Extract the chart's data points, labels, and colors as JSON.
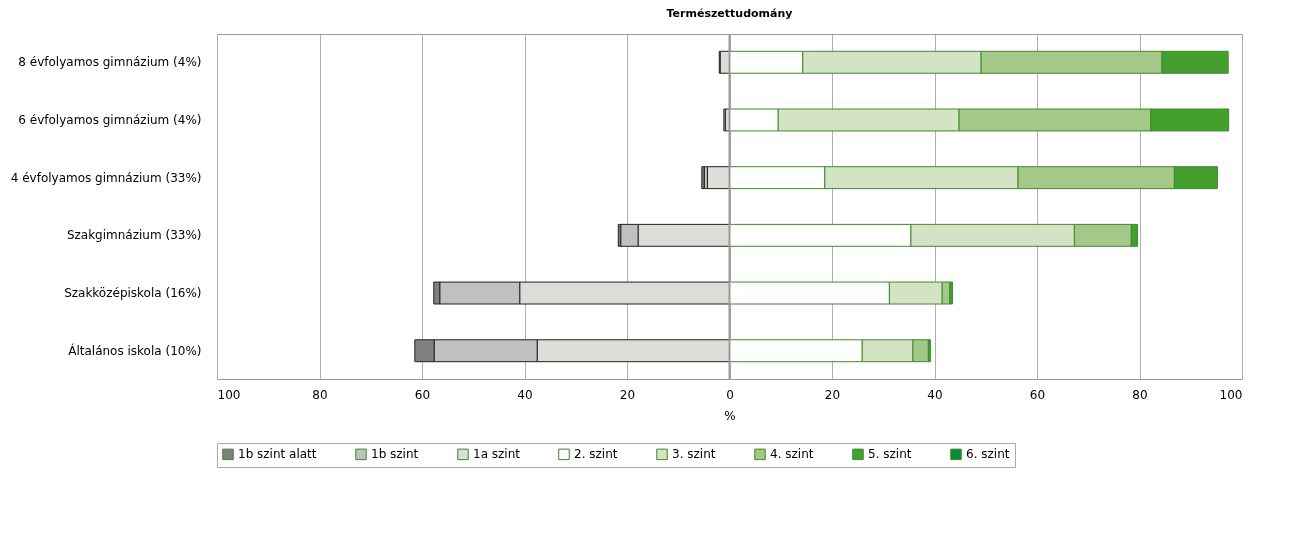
{
  "chart_data": {
    "type": "bar",
    "orientation": "horizontal",
    "stacked": true,
    "title": "Természettudomány",
    "xlabel": "%",
    "categories": [
      "8 évfolyamos gimnázium (4%)",
      "6 évfolyamos gimnázium (4%)",
      "4 évfolyamos gimnázium (33%)",
      "Szakgimnázium (33%)",
      "Szakközépiskola (16%)",
      "Általános iskola (10%)"
    ],
    "series": [
      {
        "name": "1b szint alatt",
        "color": "#808080",
        "values": [
          null,
          null,
          -0.5,
          -0.5,
          -1.2,
          -3.8
        ]
      },
      {
        "name": "1b szint",
        "color": "#c0c0c0",
        "values": [
          -0.2,
          -0.3,
          -0.6,
          -3.4,
          -15.6,
          -20.1
        ]
      },
      {
        "name": "1a szint",
        "color": "#dcdcd8",
        "values": [
          -1.8,
          -0.8,
          -4.3,
          -17.8,
          -40.9,
          -37.5
        ]
      },
      {
        "name": "2. szint",
        "color": "#ffffff",
        "values": [
          14.3,
          9.5,
          18.6,
          35.4,
          31.2,
          25.9
        ]
      },
      {
        "name": "3. szint",
        "color": "#d4e3c4",
        "values": [
          34.8,
          35.3,
          37.7,
          31.9,
          10.3,
          9.9
        ]
      },
      {
        "name": "4. szint",
        "color": "#a3c887",
        "values": [
          35.3,
          37.4,
          30.5,
          11.1,
          1.5,
          3.0
        ]
      },
      {
        "name": "5. szint",
        "color": "#43a02e",
        "values": [
          12.9,
          15.2,
          8.4,
          1.2,
          0.5,
          0.4
        ]
      },
      {
        "name": "6. szint",
        "color": "#0a8a3a",
        "values": [
          null,
          null,
          null,
          null,
          null,
          null
        ]
      }
    ],
    "xlim": [
      -100,
      100
    ],
    "xticks": [
      {
        "value": -100,
        "label": "100"
      },
      {
        "value": -80,
        "label": "80"
      },
      {
        "value": -60,
        "label": "60"
      },
      {
        "value": -40,
        "label": "40"
      },
      {
        "value": -20,
        "label": "20"
      },
      0,
      20,
      40,
      60,
      80,
      100
    ],
    "grid": "x",
    "legend": "bottom"
  }
}
